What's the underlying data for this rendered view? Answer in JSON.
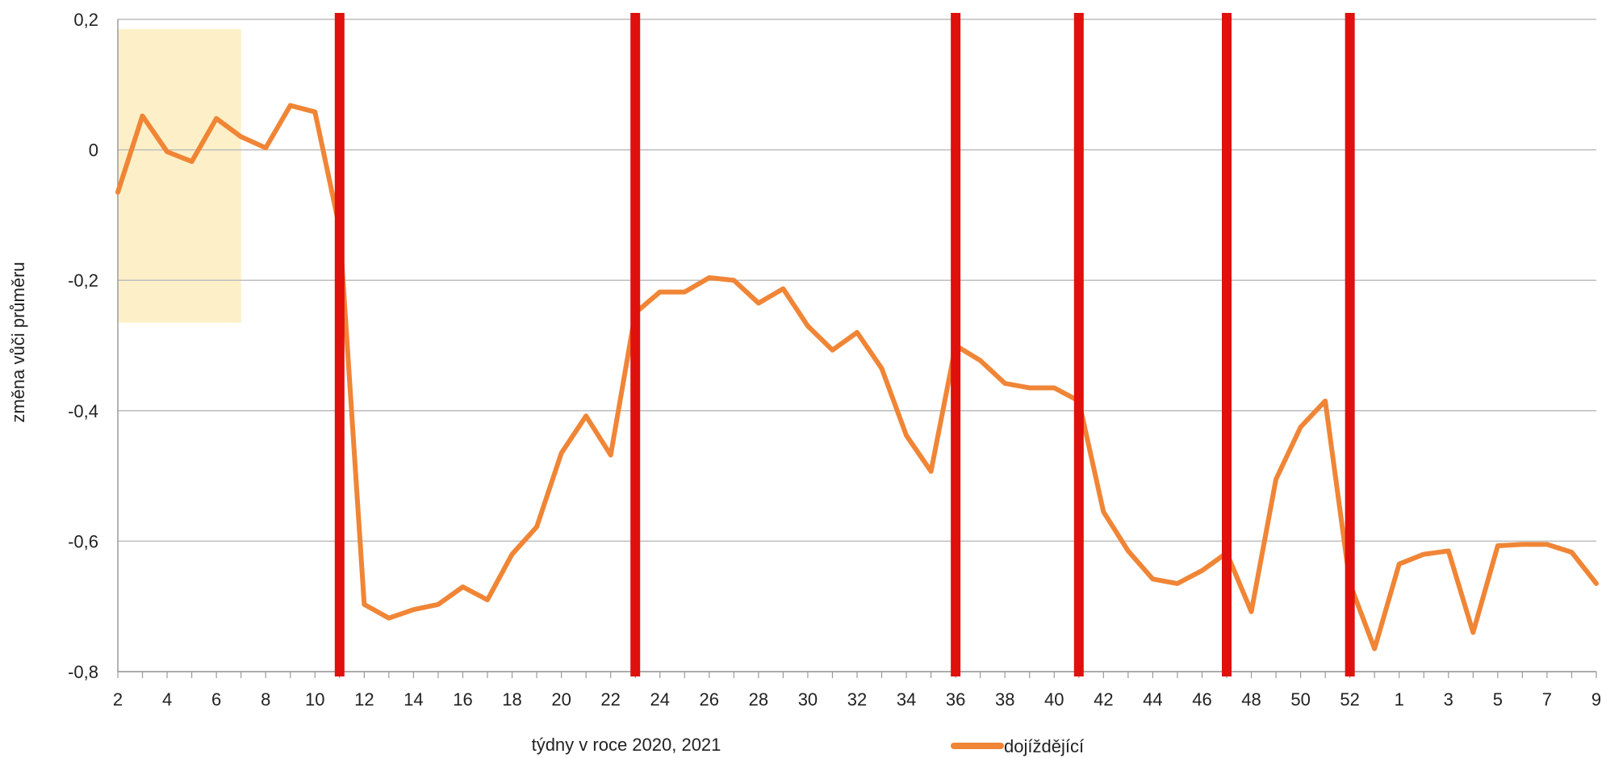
{
  "chart_data": {
    "type": "line",
    "title": "",
    "xlabel": "týdny v roce 2020, 2021",
    "ylabel": "změna vůči průměru",
    "ylim": [
      -0.8,
      0.2
    ],
    "yticks": [
      {
        "value": 0.2,
        "label": "0,2"
      },
      {
        "value": 0,
        "label": "0"
      },
      {
        "value": -0.2,
        "label": "-0,2"
      },
      {
        "value": -0.4,
        "label": "-0,4"
      },
      {
        "value": -0.6,
        "label": "-0,6"
      },
      {
        "value": -0.8,
        "label": "-0,8"
      }
    ],
    "grid": true,
    "legend_position": "bottom",
    "categories": [
      "2",
      "3",
      "4",
      "5",
      "6",
      "7",
      "8",
      "9",
      "10",
      "11",
      "12",
      "13",
      "14",
      "15",
      "16",
      "17",
      "18",
      "19",
      "20",
      "21",
      "22",
      "23",
      "24",
      "25",
      "26",
      "27",
      "28",
      "29",
      "30",
      "31",
      "32",
      "33",
      "34",
      "35",
      "36",
      "37",
      "38",
      "39",
      "40",
      "41",
      "42",
      "43",
      "44",
      "45",
      "46",
      "47",
      "48",
      "49",
      "50",
      "51",
      "52",
      "53",
      "1",
      "2",
      "3",
      "4",
      "5",
      "6",
      "7",
      "8",
      "9"
    ],
    "xtick_labels": [
      "2",
      "4",
      "6",
      "8",
      "10",
      "12",
      "14",
      "16",
      "18",
      "20",
      "22",
      "24",
      "26",
      "28",
      "30",
      "32",
      "34",
      "36",
      "38",
      "40",
      "42",
      "44",
      "46",
      "48",
      "50",
      "52",
      "1",
      "3",
      "5",
      "7",
      "9"
    ],
    "series": [
      {
        "name": "dojíždějící",
        "color": "#f08536",
        "values": [
          -0.065,
          0.052,
          -0.003,
          -0.018,
          0.048,
          0.02,
          0.003,
          0.068,
          0.058,
          -0.12,
          -0.697,
          -0.718,
          -0.705,
          -0.697,
          -0.67,
          -0.69,
          -0.62,
          -0.578,
          -0.465,
          -0.408,
          -0.468,
          -0.25,
          -0.218,
          -0.218,
          -0.196,
          -0.2,
          -0.235,
          -0.213,
          -0.27,
          -0.307,
          -0.28,
          -0.335,
          -0.438,
          -0.493,
          -0.3,
          -0.323,
          -0.358,
          -0.365,
          -0.365,
          -0.385,
          -0.555,
          -0.615,
          -0.658,
          -0.665,
          -0.645,
          -0.618,
          -0.708,
          -0.505,
          -0.425,
          -0.385,
          -0.665,
          -0.765,
          -0.635,
          -0.62,
          -0.615,
          -0.74,
          -0.607,
          -0.605,
          -0.605,
          -0.617,
          -0.665
        ]
      }
    ],
    "markers": {
      "color": "#e0100c",
      "at_categories": [
        "11",
        "23",
        "36",
        "41",
        "47",
        "52"
      ],
      "at_indices": [
        9,
        21,
        34,
        39,
        45,
        50
      ]
    },
    "highlight": {
      "color": "#fdf0c8",
      "from_index": 0,
      "to_index": 5,
      "y_range": [
        -0.265,
        0.185
      ]
    }
  }
}
